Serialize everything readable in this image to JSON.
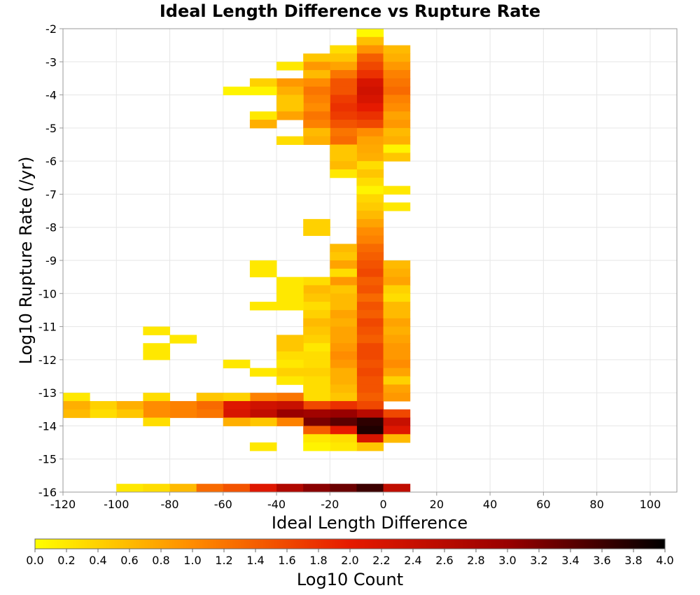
{
  "chart_data": {
    "type": "heatmap",
    "title": "Ideal Length Difference vs Rupture Rate",
    "xlabel": "Ideal Length Difference",
    "ylabel": "Log10 Rupture Rate (/yr)",
    "colorbar_label": "Log10 Count",
    "xlim": [
      -120,
      110
    ],
    "ylim": [
      -16,
      -2
    ],
    "x_ticks": [
      -120,
      -100,
      -80,
      -60,
      -40,
      -20,
      0,
      20,
      40,
      60,
      80,
      100
    ],
    "y_ticks": [
      -2,
      -3,
      -4,
      -5,
      -6,
      -7,
      -8,
      -9,
      -10,
      -11,
      -12,
      -13,
      -14,
      -15,
      -16
    ],
    "color_ticks": [
      "0.0",
      "0.2",
      "0.4",
      "0.6",
      "0.8",
      "1.0",
      "1.2",
      "1.4",
      "1.6",
      "1.8",
      "2.0",
      "2.2",
      "2.4",
      "2.6",
      "2.8",
      "3.0",
      "3.2",
      "3.4",
      "3.6",
      "3.8",
      "4.0"
    ],
    "color_range": [
      0,
      4
    ],
    "colormap": [
      "#ffff00",
      "#ff8c00",
      "#e61a00",
      "#990000",
      "#000000"
    ],
    "bin_width_x": 10,
    "bin_height_y": 0.25,
    "grid": true,
    "cells": [
      [
        -5,
        -2.125,
        0.05
      ],
      [
        -5,
        -2.375,
        0.55
      ],
      [
        -5,
        -2.625,
        0.95
      ],
      [
        -5,
        -2.875,
        1.4
      ],
      [
        -5,
        -3.125,
        1.6
      ],
      [
        -5,
        -3.375,
        1.8
      ],
      [
        -5,
        -3.625,
        2.2
      ],
      [
        -5,
        -3.875,
        2.3
      ],
      [
        -5,
        -4.125,
        2.2
      ],
      [
        -5,
        -4.375,
        2.0
      ],
      [
        -5,
        -4.625,
        1.8
      ],
      [
        -5,
        -4.875,
        1.6
      ],
      [
        -5,
        -5.125,
        1.0
      ],
      [
        -5,
        -5.375,
        0.8
      ],
      [
        -5,
        -5.625,
        0.75
      ],
      [
        -5,
        -5.875,
        0.7
      ],
      [
        -5,
        -6.125,
        0.3
      ],
      [
        -5,
        -6.375,
        0.5
      ],
      [
        -5,
        -6.625,
        0.3
      ],
      [
        -5,
        -6.875,
        0.1
      ],
      [
        -5,
        -7.125,
        0.35
      ],
      [
        -5,
        -7.375,
        0.45
      ],
      [
        -5,
        -7.625,
        0.6
      ],
      [
        -5,
        -7.875,
        0.8
      ],
      [
        -5,
        -8.125,
        1.0
      ],
      [
        -5,
        -8.375,
        1.1
      ],
      [
        -5,
        -8.625,
        1.3
      ],
      [
        -5,
        -8.875,
        1.4
      ],
      [
        -5,
        -9.125,
        1.5
      ],
      [
        -5,
        -9.375,
        1.6
      ],
      [
        -5,
        -9.625,
        1.4
      ],
      [
        -5,
        -9.875,
        1.5
      ],
      [
        -5,
        -10.125,
        1.3
      ],
      [
        -5,
        -10.375,
        1.5
      ],
      [
        -5,
        -10.625,
        1.4
      ],
      [
        -5,
        -10.875,
        1.6
      ],
      [
        -5,
        -11.125,
        1.5
      ],
      [
        -5,
        -11.375,
        1.4
      ],
      [
        -5,
        -11.625,
        1.6
      ],
      [
        -5,
        -11.875,
        1.6
      ],
      [
        -5,
        -12.125,
        1.5
      ],
      [
        -5,
        -12.375,
        1.6
      ],
      [
        -5,
        -12.625,
        1.5
      ],
      [
        -5,
        -12.875,
        1.5
      ],
      [
        -5,
        -13.125,
        1.4
      ],
      [
        -5,
        -13.375,
        1.6
      ],
      [
        -5,
        -13.625,
        2.6
      ],
      [
        -5,
        -13.875,
        3.7
      ],
      [
        -5,
        -14.125,
        3.8
      ],
      [
        -5,
        -14.375,
        2.2
      ],
      [
        -5,
        -14.625,
        0.5
      ],
      [
        5,
        -2.625,
        0.6
      ],
      [
        5,
        -2.875,
        0.7
      ],
      [
        5,
        -3.125,
        0.9
      ],
      [
        5,
        -3.375,
        1.1
      ],
      [
        5,
        -3.625,
        1.2
      ],
      [
        5,
        -3.875,
        1.3
      ],
      [
        5,
        -4.125,
        1.1
      ],
      [
        5,
        -4.375,
        1.0
      ],
      [
        5,
        -4.625,
        0.8
      ],
      [
        5,
        -4.875,
        0.9
      ],
      [
        5,
        -5.125,
        0.6
      ],
      [
        5,
        -5.375,
        0.7
      ],
      [
        5,
        -5.625,
        0.1
      ],
      [
        5,
        -5.875,
        0.5
      ],
      [
        5,
        -6.875,
        0.2
      ],
      [
        5,
        -7.375,
        0.2
      ],
      [
        5,
        -9.125,
        0.6
      ],
      [
        5,
        -9.375,
        0.7
      ],
      [
        5,
        -9.625,
        0.8
      ],
      [
        5,
        -9.875,
        0.4
      ],
      [
        5,
        -10.125,
        0.3
      ],
      [
        5,
        -10.375,
        0.6
      ],
      [
        5,
        -10.625,
        0.6
      ],
      [
        5,
        -10.875,
        0.8
      ],
      [
        5,
        -11.125,
        0.7
      ],
      [
        5,
        -11.375,
        0.8
      ],
      [
        5,
        -11.625,
        0.9
      ],
      [
        5,
        -11.875,
        0.9
      ],
      [
        5,
        -12.125,
        1.0
      ],
      [
        5,
        -12.375,
        0.8
      ],
      [
        5,
        -12.625,
        0.4
      ],
      [
        5,
        -12.875,
        0.8
      ],
      [
        5,
        -13.125,
        0.9
      ],
      [
        5,
        -13.625,
        1.6
      ],
      [
        5,
        -13.875,
        2.4
      ],
      [
        5,
        -14.125,
        2.1
      ],
      [
        5,
        -14.375,
        0.6
      ],
      [
        -15,
        -2.625,
        0.3
      ],
      [
        -15,
        -2.875,
        0.5
      ],
      [
        -15,
        -3.125,
        0.8
      ],
      [
        -15,
        -3.375,
        1.2
      ],
      [
        -15,
        -3.625,
        1.5
      ],
      [
        -15,
        -3.875,
        1.5
      ],
      [
        -15,
        -4.125,
        1.7
      ],
      [
        -15,
        -4.375,
        1.8
      ],
      [
        -15,
        -4.625,
        1.7
      ],
      [
        -15,
        -4.875,
        1.5
      ],
      [
        -15,
        -5.125,
        1.2
      ],
      [
        -15,
        -5.375,
        1.3
      ],
      [
        -15,
        -5.625,
        0.5
      ],
      [
        -15,
        -5.875,
        0.5
      ],
      [
        -15,
        -6.125,
        0.6
      ],
      [
        -15,
        -6.375,
        0.2
      ],
      [
        -15,
        -8.625,
        0.6
      ],
      [
        -15,
        -8.875,
        0.5
      ],
      [
        -15,
        -9.125,
        0.8
      ],
      [
        -15,
        -9.375,
        0.3
      ],
      [
        -15,
        -9.625,
        0.9
      ],
      [
        -15,
        -9.875,
        0.5
      ],
      [
        -15,
        -10.125,
        0.6
      ],
      [
        -15,
        -10.375,
        0.6
      ],
      [
        -15,
        -10.625,
        0.8
      ],
      [
        -15,
        -10.875,
        0.7
      ],
      [
        -15,
        -11.125,
        0.8
      ],
      [
        -15,
        -11.375,
        0.8
      ],
      [
        -15,
        -11.625,
        0.9
      ],
      [
        -15,
        -11.875,
        1.0
      ],
      [
        -15,
        -12.125,
        0.9
      ],
      [
        -15,
        -12.375,
        0.7
      ],
      [
        -15,
        -12.625,
        0.7
      ],
      [
        -15,
        -12.875,
        0.6
      ],
      [
        -15,
        -13.125,
        0.5
      ],
      [
        -15,
        -13.375,
        1.8
      ],
      [
        -15,
        -13.625,
        3.0
      ],
      [
        -15,
        -13.875,
        3.4
      ],
      [
        -15,
        -14.125,
        2.0
      ],
      [
        -15,
        -14.375,
        0.3
      ],
      [
        -15,
        -14.625,
        0.2
      ],
      [
        -25,
        -2.875,
        0.5
      ],
      [
        -25,
        -3.125,
        0.9
      ],
      [
        -25,
        -3.375,
        0.6
      ],
      [
        -25,
        -3.625,
        1.0
      ],
      [
        -25,
        -3.875,
        1.2
      ],
      [
        -25,
        -4.125,
        1.1
      ],
      [
        -25,
        -4.375,
        1.0
      ],
      [
        -25,
        -4.625,
        1.2
      ],
      [
        -25,
        -4.875,
        1.1
      ],
      [
        -25,
        -5.125,
        0.6
      ],
      [
        -25,
        -5.375,
        0.7
      ],
      [
        -25,
        -7.875,
        0.4
      ],
      [
        -25,
        -8.125,
        0.4
      ],
      [
        -25,
        -9.625,
        0.3
      ],
      [
        -25,
        -9.875,
        0.6
      ],
      [
        -25,
        -10.125,
        0.5
      ],
      [
        -25,
        -10.375,
        0.3
      ],
      [
        -25,
        -10.625,
        0.4
      ],
      [
        -25,
        -10.875,
        0.6
      ],
      [
        -25,
        -11.125,
        0.5
      ],
      [
        -25,
        -11.375,
        0.4
      ],
      [
        -25,
        -11.625,
        0.2
      ],
      [
        -25,
        -11.875,
        0.3
      ],
      [
        -25,
        -12.125,
        0.3
      ],
      [
        -25,
        -12.375,
        0.4
      ],
      [
        -25,
        -12.625,
        0.3
      ],
      [
        -25,
        -12.875,
        0.3
      ],
      [
        -25,
        -13.125,
        0.3
      ],
      [
        -25,
        -13.375,
        1.6
      ],
      [
        -25,
        -13.625,
        2.9
      ],
      [
        -25,
        -13.875,
        3.2
      ],
      [
        -25,
        -14.125,
        1.4
      ],
      [
        -25,
        -14.375,
        0.2
      ],
      [
        -25,
        -14.625,
        0.1
      ],
      [
        -35,
        -3.125,
        0.2
      ],
      [
        -35,
        -3.625,
        0.9
      ],
      [
        -35,
        -3.875,
        0.7
      ],
      [
        -35,
        -4.125,
        0.5
      ],
      [
        -35,
        -4.375,
        0.5
      ],
      [
        -35,
        -4.625,
        0.8
      ],
      [
        -35,
        -5.375,
        0.3
      ],
      [
        -35,
        -9.625,
        0.2
      ],
      [
        -35,
        -9.875,
        0.2
      ],
      [
        -35,
        -10.125,
        0.2
      ],
      [
        -35,
        -10.375,
        0.2
      ],
      [
        -35,
        -11.375,
        0.5
      ],
      [
        -35,
        -11.625,
        0.5
      ],
      [
        -35,
        -11.875,
        0.3
      ],
      [
        -35,
        -12.125,
        0.2
      ],
      [
        -35,
        -12.375,
        0.4
      ],
      [
        -35,
        -12.625,
        0.2
      ],
      [
        -35,
        -13.125,
        1.2
      ],
      [
        -35,
        -13.375,
        2.4
      ],
      [
        -35,
        -13.625,
        3.0
      ],
      [
        -35,
        -13.875,
        1.1
      ],
      [
        -45,
        -3.625,
        0.4
      ],
      [
        -45,
        -3.875,
        0.1
      ],
      [
        -45,
        -4.625,
        0.2
      ],
      [
        -45,
        -4.875,
        0.7
      ],
      [
        -45,
        -9.125,
        0.2
      ],
      [
        -45,
        -9.375,
        0.2
      ],
      [
        -45,
        -10.375,
        0.2
      ],
      [
        -45,
        -12.375,
        0.2
      ],
      [
        -45,
        -13.125,
        1.1
      ],
      [
        -45,
        -13.375,
        2.3
      ],
      [
        -45,
        -13.625,
        2.5
      ],
      [
        -45,
        -13.875,
        0.5
      ],
      [
        -45,
        -14.625,
        0.2
      ],
      [
        -55,
        -3.875,
        0.1
      ],
      [
        -55,
        -12.125,
        0.2
      ],
      [
        -55,
        -13.125,
        0.4
      ],
      [
        -55,
        -13.375,
        2.1
      ],
      [
        -55,
        -13.625,
        2.2
      ],
      [
        -55,
        -13.875,
        0.7
      ],
      [
        -65,
        -13.125,
        0.5
      ],
      [
        -65,
        -13.375,
        1.3
      ],
      [
        -65,
        -13.625,
        1.2
      ],
      [
        -75,
        -11.375,
        0.2
      ],
      [
        -75,
        -13.375,
        1.1
      ],
      [
        -75,
        -13.625,
        1.1
      ],
      [
        -85,
        -11.125,
        0.2
      ],
      [
        -85,
        -11.625,
        0.2
      ],
      [
        -85,
        -11.875,
        0.2
      ],
      [
        -85,
        -13.125,
        0.3
      ],
      [
        -85,
        -13.375,
        1.0
      ],
      [
        -85,
        -13.625,
        1.0
      ],
      [
        -85,
        -13.875,
        0.3
      ],
      [
        -95,
        -13.375,
        0.7
      ],
      [
        -95,
        -13.625,
        0.5
      ],
      [
        -105,
        -13.375,
        0.4
      ],
      [
        -105,
        -13.625,
        0.3
      ],
      [
        -115,
        -13.125,
        0.2
      ],
      [
        -115,
        -13.375,
        0.7
      ],
      [
        -115,
        -13.625,
        0.6
      ],
      [
        -95,
        -15.875,
        0.2
      ],
      [
        -85,
        -15.875,
        0.3
      ],
      [
        -75,
        -15.875,
        0.6
      ],
      [
        -65,
        -15.875,
        1.3
      ],
      [
        -55,
        -15.875,
        1.5
      ],
      [
        -45,
        -15.875,
        2.1
      ],
      [
        -35,
        -15.875,
        2.7
      ],
      [
        -25,
        -15.875,
        3.1
      ],
      [
        -15,
        -15.875,
        3.3
      ],
      [
        -5,
        -15.875,
        3.6
      ],
      [
        5,
        -15.875,
        2.5
      ]
    ]
  }
}
